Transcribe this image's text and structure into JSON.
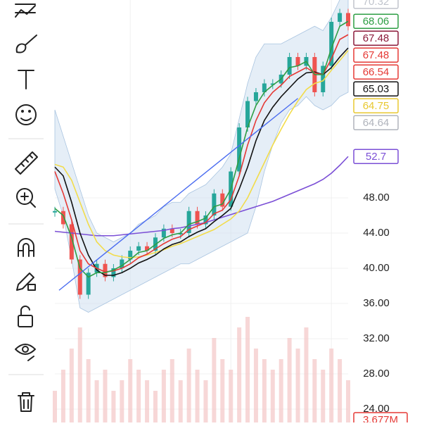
{
  "chart_data": {
    "type": "line",
    "grid": true,
    "ylim": [
      22.48,
      70.48
    ],
    "yticks": [
      {
        "value": 24,
        "label": "24.00"
      },
      {
        "value": 28,
        "label": "28.00"
      },
      {
        "value": 32,
        "label": "32.00"
      },
      {
        "value": 36,
        "label": "36.00"
      },
      {
        "value": 40,
        "label": "40.00"
      },
      {
        "value": 44,
        "label": "44.00"
      },
      {
        "value": 48,
        "label": "48.00"
      }
    ],
    "x": [
      0,
      1,
      2,
      3,
      4,
      5,
      6,
      7,
      8,
      9,
      10,
      11,
      12,
      13,
      14,
      15,
      16,
      17,
      18,
      19,
      20,
      21,
      22,
      23,
      24,
      25,
      26,
      27,
      28,
      29,
      30,
      31,
      32,
      33,
      34,
      35
    ],
    "xlim": [
      0,
      35
    ],
    "price": {
      "up_color": "#26a69a",
      "down_color": "#ef5350",
      "values": [
        46.5,
        45,
        41,
        37,
        39.5,
        40.5,
        39,
        40,
        41,
        42,
        42.5,
        42,
        43.5,
        44.5,
        44,
        44,
        46.5,
        45,
        46,
        48.5,
        47,
        51,
        56,
        59,
        60,
        61,
        61,
        62,
        64,
        63,
        64,
        60,
        63,
        68,
        69,
        67.5
      ]
    },
    "band": {
      "color": "#cfe0f0",
      "upper": [
        58,
        55,
        52,
        49,
        46,
        44,
        43.5,
        43,
        43.5,
        44,
        45,
        45.5,
        46,
        47,
        47.5,
        47.5,
        48.5,
        49,
        49.5,
        50.5,
        51.5,
        53,
        57,
        61,
        64,
        65.5,
        65.5,
        65.5,
        66,
        66.5,
        67,
        67.5,
        67,
        68.5,
        70.5,
        71
      ],
      "lower": [
        49,
        46,
        41,
        35.5,
        35,
        35.5,
        36,
        36.5,
        37,
        37.5,
        38,
        38.5,
        39,
        39.5,
        40,
        40.5,
        40.5,
        41,
        41.5,
        42,
        42.5,
        43,
        43.5,
        44,
        47,
        51,
        54,
        56.5,
        58,
        58.5,
        59.5,
        58.5,
        58,
        58.5,
        59.5,
        60
      ]
    },
    "series": [
      {
        "color": "#7b4fd6",
        "values": [
          44.2,
          44.1,
          44,
          43.9,
          43.8,
          43.7,
          43.7,
          43.7,
          43.8,
          43.9,
          44,
          44.1,
          44.2,
          44.3,
          44.5,
          44.6,
          44.8,
          45,
          45.2,
          45.5,
          45.8,
          46.1,
          46.4,
          46.7,
          47,
          47.3,
          47.6,
          48,
          48.4,
          48.8,
          49.2,
          49.6,
          50.1,
          50.8,
          51.7,
          52.7
        ]
      },
      {
        "color": "#f2dc4a",
        "values": [
          51.8,
          51.5,
          50,
          47.5,
          45,
          43,
          42,
          41.5,
          41.3,
          41.2,
          41.3,
          41.5,
          41.8,
          42.1,
          42.5,
          42.8,
          43.2,
          43.6,
          44,
          44.4,
          45,
          45.6,
          46.5,
          48,
          50,
          52,
          54,
          55.8,
          57.5,
          59,
          60.3,
          61,
          61.3,
          62.5,
          63.6,
          64.75
        ]
      },
      {
        "color": "#111111",
        "values": [
          51.5,
          50.5,
          47.5,
          44,
          41.5,
          39.8,
          39.2,
          39.2,
          39.5,
          40,
          40.6,
          41,
          41.5,
          42.2,
          42.7,
          43,
          43.6,
          44.1,
          44.5,
          45.3,
          46,
          46.8,
          49,
          51.5,
          54.5,
          56.8,
          58.3,
          59.5,
          60.5,
          61.5,
          62.2,
          62.3,
          62,
          62.8,
          64,
          65.03
        ]
      },
      {
        "color": "#e53935",
        "values": [
          51,
          48.5,
          45.5,
          42,
          40.5,
          40,
          39.6,
          39.7,
          40,
          40.5,
          41.2,
          41.6,
          42.2,
          42.8,
          43.3,
          43.6,
          44.4,
          44.8,
          45.2,
          46.2,
          46.6,
          47.8,
          50.5,
          54,
          56.8,
          58.8,
          60,
          60.8,
          61.8,
          62.3,
          62.8,
          62.2,
          62,
          63.8,
          66,
          66.54
        ]
      },
      {
        "color": "#2e9e44",
        "values": [
          46.8,
          46,
          43.5,
          40,
          39,
          39.5,
          39.5,
          39.8,
          40.3,
          41,
          41.8,
          42,
          42.7,
          43.4,
          43.8,
          44,
          45,
          45.3,
          45.7,
          47,
          47.3,
          49,
          52.5,
          56,
          58.5,
          60,
          60.8,
          61.5,
          62.8,
          63,
          63.5,
          62,
          62,
          65,
          67.5,
          68.06
        ]
      }
    ],
    "trend_line": {
      "color": "#4a6cf0",
      "x": [
        0.5,
        29
      ],
      "values": [
        37.5,
        59.3
      ]
    },
    "volume": {
      "color": "#f3c6c6",
      "ylim": [
        0,
        12
      ],
      "values": [
        3,
        5,
        7,
        9,
        6,
        4,
        5,
        3,
        4,
        6,
        5,
        4,
        3,
        5,
        6,
        4,
        7,
        5,
        4,
        8,
        6,
        5,
        9,
        10,
        7,
        6,
        5,
        6,
        8,
        7,
        9,
        6,
        5,
        7,
        6,
        4
      ]
    },
    "price_labels": [
      {
        "value": 70.32,
        "color": "#c0c4cc"
      },
      {
        "value": 68.06,
        "color": "#2e9e44"
      },
      {
        "value": 67.48,
        "color": "#8b1a3a"
      },
      {
        "value": 67.48,
        "color": "#e53935"
      },
      {
        "value": 66.54,
        "color": "#e53935"
      },
      {
        "value": 65.03,
        "color": "#111111"
      },
      {
        "value": 64.75,
        "color": "#e8c830"
      },
      {
        "value": 64.64,
        "color": "#b0b4bc"
      },
      {
        "value": 52.7,
        "color": "#7b4fd6"
      }
    ],
    "volume_label": {
      "value": 3.677,
      "label": "3.677M",
      "color": "#e53935"
    }
  }
}
